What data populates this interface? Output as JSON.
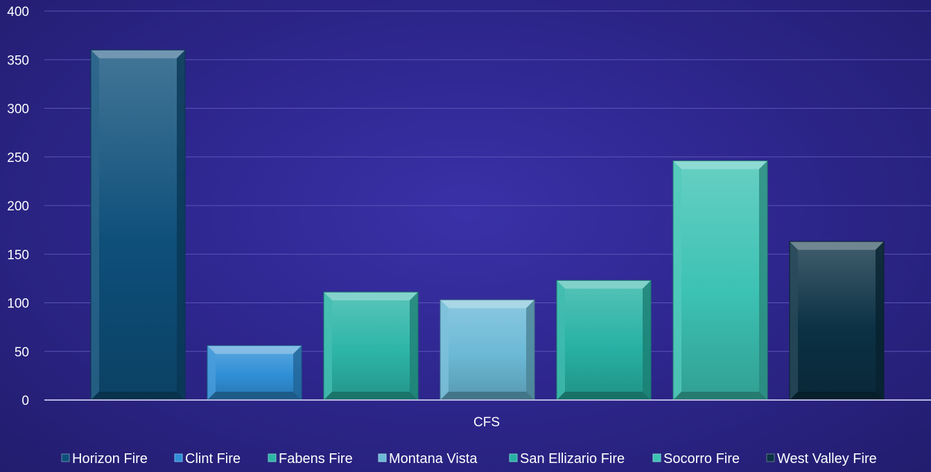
{
  "chart_data": {
    "type": "bar",
    "categories": [
      "CFS"
    ],
    "series": [
      {
        "name": "Horizon Fire",
        "values": [
          360
        ],
        "color": "#0e4f7a"
      },
      {
        "name": "Clint Fire",
        "values": [
          56
        ],
        "color": "#2f8fd6"
      },
      {
        "name": "Fabens Fire",
        "values": [
          111
        ],
        "color": "#2cb5a7"
      },
      {
        "name": "Montana Vista",
        "values": [
          103
        ],
        "color": "#6bb9d6"
      },
      {
        "name": "San Ellizario Fire",
        "values": [
          123
        ],
        "color": "#27b2a4"
      },
      {
        "name": "Socorro Fire",
        "values": [
          246
        ],
        "color": "#3cc2b3"
      },
      {
        "name": "West Valley Fire",
        "values": [
          163
        ],
        "color": "#0b3144"
      }
    ],
    "yticks": [
      "0",
      "50",
      "100",
      "150",
      "200",
      "250",
      "300",
      "350",
      "400"
    ],
    "ylim": [
      0,
      400
    ],
    "grid": true,
    "legend_position": "bottom",
    "title": "",
    "xlabel": "",
    "ylabel": ""
  }
}
